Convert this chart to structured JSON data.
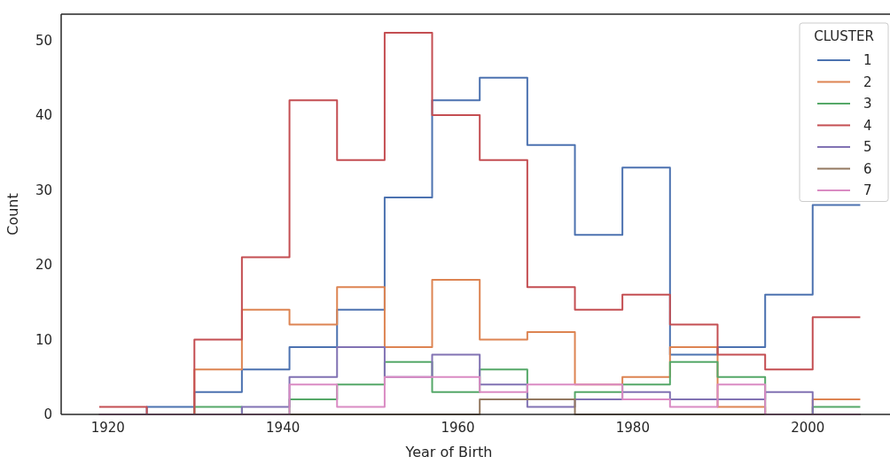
{
  "chart_data": {
    "type": "histogram",
    "xlabel": "Year of Birth",
    "ylabel": "Count",
    "legend_title": "CLUSTER",
    "legend": "top right",
    "grid": false,
    "bins": [
      1919,
      1924.44,
      1929.88,
      1935.31,
      1940.75,
      1946.19,
      1951.63,
      1957.06,
      1962.5,
      1967.94,
      1973.38,
      1978.81,
      1984.25,
      1989.69,
      1995.13,
      2000.56,
      2006
    ],
    "xlim": [
      1914.65,
      2009.4
    ],
    "xticks": [
      1920,
      1940,
      1960,
      1980,
      2000
    ],
    "ylim": [
      0,
      53.5
    ],
    "yticks": [
      0,
      10,
      20,
      30,
      40,
      50
    ],
    "series": [
      {
        "name": "1",
        "color": "#4c72b0",
        "values": [
          0,
          1,
          3,
          6,
          9,
          14,
          29,
          42,
          45,
          36,
          24,
          33,
          8,
          9,
          16,
          28
        ]
      },
      {
        "name": "2",
        "color": "#dd8452",
        "values": [
          0,
          0,
          6,
          14,
          12,
          17,
          9,
          18,
          10,
          11,
          4,
          5,
          9,
          1,
          0,
          2
        ]
      },
      {
        "name": "3",
        "color": "#55a868",
        "values": [
          0,
          0,
          1,
          0,
          2,
          4,
          7,
          3,
          6,
          2,
          3,
          4,
          7,
          5,
          0,
          1
        ]
      },
      {
        "name": "4",
        "color": "#c44e52",
        "values": [
          1,
          0,
          10,
          21,
          42,
          34,
          51,
          40,
          34,
          17,
          14,
          16,
          12,
          8,
          6,
          13
        ]
      },
      {
        "name": "5",
        "color": "#8172b3",
        "values": [
          0,
          0,
          0,
          1,
          5,
          9,
          5,
          8,
          4,
          1,
          2,
          3,
          2,
          2,
          3,
          0
        ]
      },
      {
        "name": "6",
        "color": "#937860",
        "values": [
          0,
          0,
          0,
          0,
          0,
          0,
          0,
          0,
          2,
          2,
          0,
          0,
          0,
          0,
          0,
          0
        ]
      },
      {
        "name": "7",
        "color": "#da8bc3",
        "values": [
          0,
          0,
          0,
          0,
          4,
          1,
          5,
          5,
          3,
          4,
          4,
          2,
          1,
          4,
          0,
          0
        ]
      }
    ]
  }
}
